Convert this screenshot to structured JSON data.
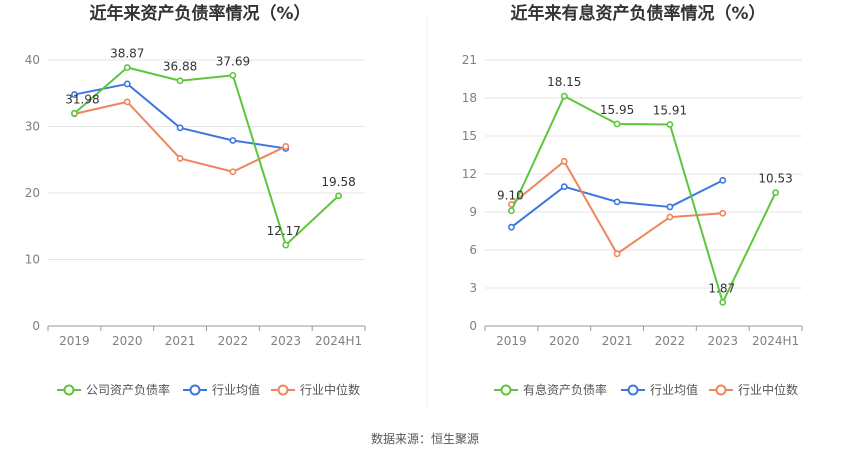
{
  "source": "数据来源：恒生聚源",
  "colors": {
    "company": "#5cc63c",
    "avg": "#3d77e0",
    "median": "#f0855d",
    "grid": "#e6e6e6",
    "axis": "#999999"
  },
  "chart_data": [
    {
      "type": "line",
      "title": "近年来资产负债率情况（%）",
      "categories": [
        "2019",
        "2020",
        "2021",
        "2022",
        "2023",
        "2024H1"
      ],
      "ylim": [
        0,
        40
      ],
      "yticks": [
        0,
        10,
        20,
        30,
        40
      ],
      "grid": true,
      "legend_position": "bottom",
      "series": [
        {
          "name": "公司资产负债率",
          "color": "#5cc63c",
          "values": [
            31.98,
            38.87,
            36.88,
            37.69,
            12.17,
            19.58
          ],
          "labels": [
            "31.98",
            "38.87",
            "36.88",
            "37.69",
            "12.17",
            "19.58"
          ]
        },
        {
          "name": "行业均值",
          "color": "#3d77e0",
          "values": [
            34.8,
            36.4,
            29.8,
            27.9,
            26.7,
            null
          ]
        },
        {
          "name": "行业中位数",
          "color": "#f0855d",
          "values": [
            31.9,
            33.7,
            25.2,
            23.2,
            27.0,
            null
          ]
        }
      ]
    },
    {
      "type": "line",
      "title": "近年来有息资产负债率情况（%）",
      "categories": [
        "2019",
        "2020",
        "2021",
        "2022",
        "2023",
        "2024H1"
      ],
      "ylim": [
        0,
        21
      ],
      "yticks": [
        0,
        3,
        6,
        9,
        12,
        15,
        18,
        21
      ],
      "grid": true,
      "legend_position": "bottom",
      "series": [
        {
          "name": "有息资产负债率",
          "color": "#5cc63c",
          "values": [
            9.1,
            18.15,
            15.95,
            15.91,
            1.87,
            10.53
          ],
          "labels": [
            "9.10",
            "18.15",
            "15.95",
            "15.91",
            "1.87",
            "10.53"
          ]
        },
        {
          "name": "行业均值",
          "color": "#3d77e0",
          "values": [
            7.8,
            11.0,
            9.8,
            9.4,
            11.5,
            null
          ]
        },
        {
          "name": "行业中位数",
          "color": "#f0855d",
          "values": [
            9.6,
            13.0,
            5.7,
            8.6,
            8.9,
            null
          ]
        }
      ]
    }
  ]
}
